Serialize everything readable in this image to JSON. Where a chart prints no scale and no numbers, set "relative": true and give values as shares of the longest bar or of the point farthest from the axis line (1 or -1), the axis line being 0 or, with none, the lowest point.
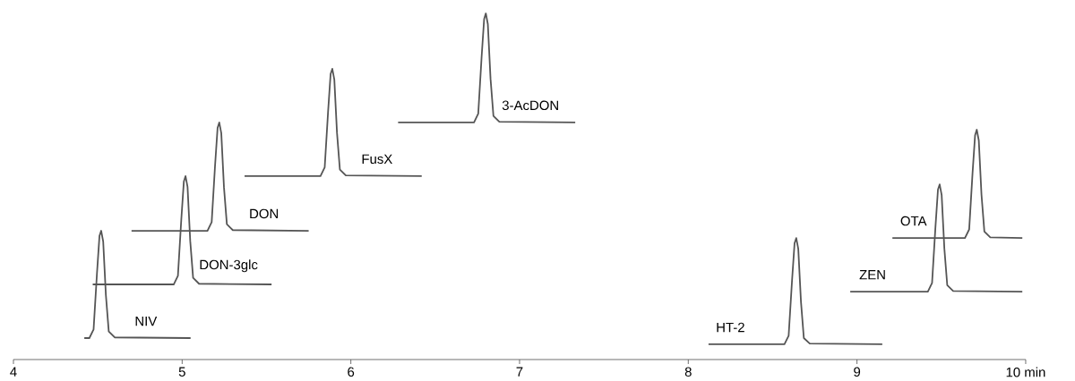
{
  "chart_data": {
    "type": "line",
    "relative": true,
    "xlim": [
      4,
      10
    ],
    "xticks": [
      4,
      5,
      6,
      7,
      8,
      9,
      {
        "value": 10,
        "label": "10 min"
      }
    ],
    "grid": false,
    "marker": "none",
    "line_style": "solid",
    "series": [
      {
        "name": "NIV",
        "color": "#555555",
        "x": [
          4.42,
          4.45,
          4.475,
          4.495,
          4.51,
          4.52,
          4.532,
          4.548,
          4.565,
          4.6,
          5.05
        ],
        "values": [
          0.062,
          0.062,
          0.087,
          0.248,
          0.357,
          0.372,
          0.341,
          0.186,
          0.081,
          0.064,
          0.062
        ]
      },
      {
        "name": "DON-3glc",
        "color": "#555555",
        "x": [
          4.47,
          4.95,
          4.975,
          4.995,
          5.01,
          5.02,
          5.032,
          5.048,
          5.065,
          5.1,
          5.53
        ],
        "values": [
          0.217,
          0.217,
          0.242,
          0.405,
          0.514,
          0.53,
          0.499,
          0.342,
          0.236,
          0.219,
          0.217
        ]
      },
      {
        "name": "DON",
        "color": "#555555",
        "x": [
          4.7,
          5.15,
          5.175,
          5.195,
          5.21,
          5.22,
          5.232,
          5.248,
          5.265,
          5.3,
          5.75
        ],
        "values": [
          0.372,
          0.372,
          0.397,
          0.56,
          0.669,
          0.685,
          0.654,
          0.497,
          0.391,
          0.374,
          0.372
        ]
      },
      {
        "name": "FusX",
        "color": "#555555",
        "x": [
          5.37,
          5.82,
          5.845,
          5.865,
          5.88,
          5.89,
          5.902,
          5.918,
          5.935,
          5.97,
          6.42
        ],
        "values": [
          0.53,
          0.53,
          0.555,
          0.716,
          0.825,
          0.84,
          0.809,
          0.654,
          0.549,
          0.532,
          0.53
        ]
      },
      {
        "name": "3-AcDON",
        "color": "#555555",
        "x": [
          6.28,
          6.73,
          6.755,
          6.775,
          6.79,
          6.8,
          6.812,
          6.828,
          6.845,
          6.88,
          7.33
        ],
        "values": [
          0.685,
          0.685,
          0.71,
          0.874,
          0.984,
          1.0,
          0.969,
          0.811,
          0.704,
          0.687,
          0.685
        ]
      },
      {
        "name": "HT-2",
        "color": "#555555",
        "x": [
          8.12,
          8.57,
          8.595,
          8.615,
          8.63,
          8.64,
          8.652,
          8.668,
          8.685,
          8.72,
          9.15
        ],
        "values": [
          0.044,
          0.044,
          0.069,
          0.228,
          0.336,
          0.351,
          0.32,
          0.167,
          0.062,
          0.046,
          0.044
        ]
      },
      {
        "name": "ZEN",
        "color": "#555555",
        "x": [
          8.96,
          9.42,
          9.445,
          9.465,
          9.48,
          9.49,
          9.502,
          9.518,
          9.535,
          9.57,
          9.98
        ],
        "values": [
          0.196,
          0.196,
          0.221,
          0.382,
          0.491,
          0.506,
          0.475,
          0.32,
          0.215,
          0.198,
          0.196
        ]
      },
      {
        "name": "OTA",
        "color": "#555555",
        "x": [
          9.21,
          9.64,
          9.665,
          9.685,
          9.7,
          9.71,
          9.722,
          9.738,
          9.755,
          9.79,
          9.98
        ],
        "values": [
          0.351,
          0.351,
          0.376,
          0.539,
          0.648,
          0.664,
          0.633,
          0.476,
          0.37,
          0.353,
          0.351
        ]
      }
    ]
  }
}
